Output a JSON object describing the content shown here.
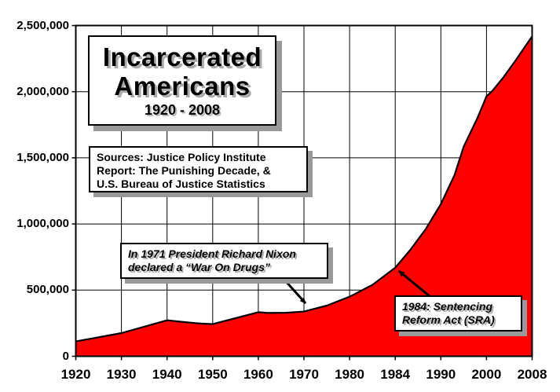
{
  "chart_data": {
    "type": "area",
    "title": "Incarcerated Americans",
    "title_line1": "Incarcerated",
    "title_line2": "Americans",
    "subtitle": "1920 - 2008",
    "source_lines": [
      "Sources: Justice Policy Institute",
      "Report: The Punishing Decade, &",
      "U.S. Bureau of Justice Statistics"
    ],
    "x_categories": [
      1920,
      1930,
      1940,
      1950,
      1960,
      1970,
      1980,
      1984,
      1990,
      2000,
      2008
    ],
    "x_tick_labels": [
      "1920",
      "1930",
      "1940",
      "1950",
      "1960",
      "1970",
      "1980",
      "1984",
      "1990",
      "2000",
      "2008"
    ],
    "y_ticks": [
      {
        "value": 0,
        "label": "0"
      },
      {
        "value": 500000,
        "label": "500,000"
      },
      {
        "value": 1000000,
        "label": "1,000,000"
      },
      {
        "value": 1500000,
        "label": "1,500,000"
      },
      {
        "value": 2000000,
        "label": "2,000,000"
      },
      {
        "value": 2500000,
        "label": "2,500,000"
      }
    ],
    "ylim": [
      0,
      2500000
    ],
    "grid": true,
    "fill_color": "#ff0000",
    "line_color": "#000000",
    "values_at_x_ticks": [
      112000,
      175000,
      272000,
      243000,
      333000,
      338000,
      450000,
      670000,
      1150000,
      1965000,
      2418000
    ],
    "shape_points": [
      {
        "year": 1920,
        "value": 112000
      },
      {
        "year": 1930,
        "value": 175000
      },
      {
        "year": 1940,
        "value": 272000
      },
      {
        "year": 1944,
        "value": 258000
      },
      {
        "year": 1947,
        "value": 248000
      },
      {
        "year": 1950,
        "value": 243000
      },
      {
        "year": 1955,
        "value": 288000
      },
      {
        "year": 1960,
        "value": 333000
      },
      {
        "year": 1962,
        "value": 327000
      },
      {
        "year": 1966,
        "value": 329000
      },
      {
        "year": 1970,
        "value": 338000
      },
      {
        "year": 1975,
        "value": 383000
      },
      {
        "year": 1980,
        "value": 450000
      },
      {
        "year": 1982,
        "value": 540000
      },
      {
        "year": 1984,
        "value": 670000
      },
      {
        "year": 1986,
        "value": 805000
      },
      {
        "year": 1988,
        "value": 960000
      },
      {
        "year": 1990,
        "value": 1150000
      },
      {
        "year": 1993,
        "value": 1370000
      },
      {
        "year": 1995,
        "value": 1585000
      },
      {
        "year": 1998,
        "value": 1800000
      },
      {
        "year": 2000,
        "value": 1965000
      },
      {
        "year": 2001,
        "value": 2005000
      },
      {
        "year": 2003,
        "value": 2110000
      },
      {
        "year": 2005,
        "value": 2230000
      },
      {
        "year": 2008,
        "value": 2418000
      }
    ],
    "annotations": [
      {
        "lines": [
          "In 1971 President Richard Nixon",
          "declared a “War On Drugs”"
        ],
        "points_at_year": 1971
      },
      {
        "lines": [
          "1984: Sentencing",
          "Reform Act (SRA)"
        ],
        "points_at_year": 1984
      }
    ]
  }
}
